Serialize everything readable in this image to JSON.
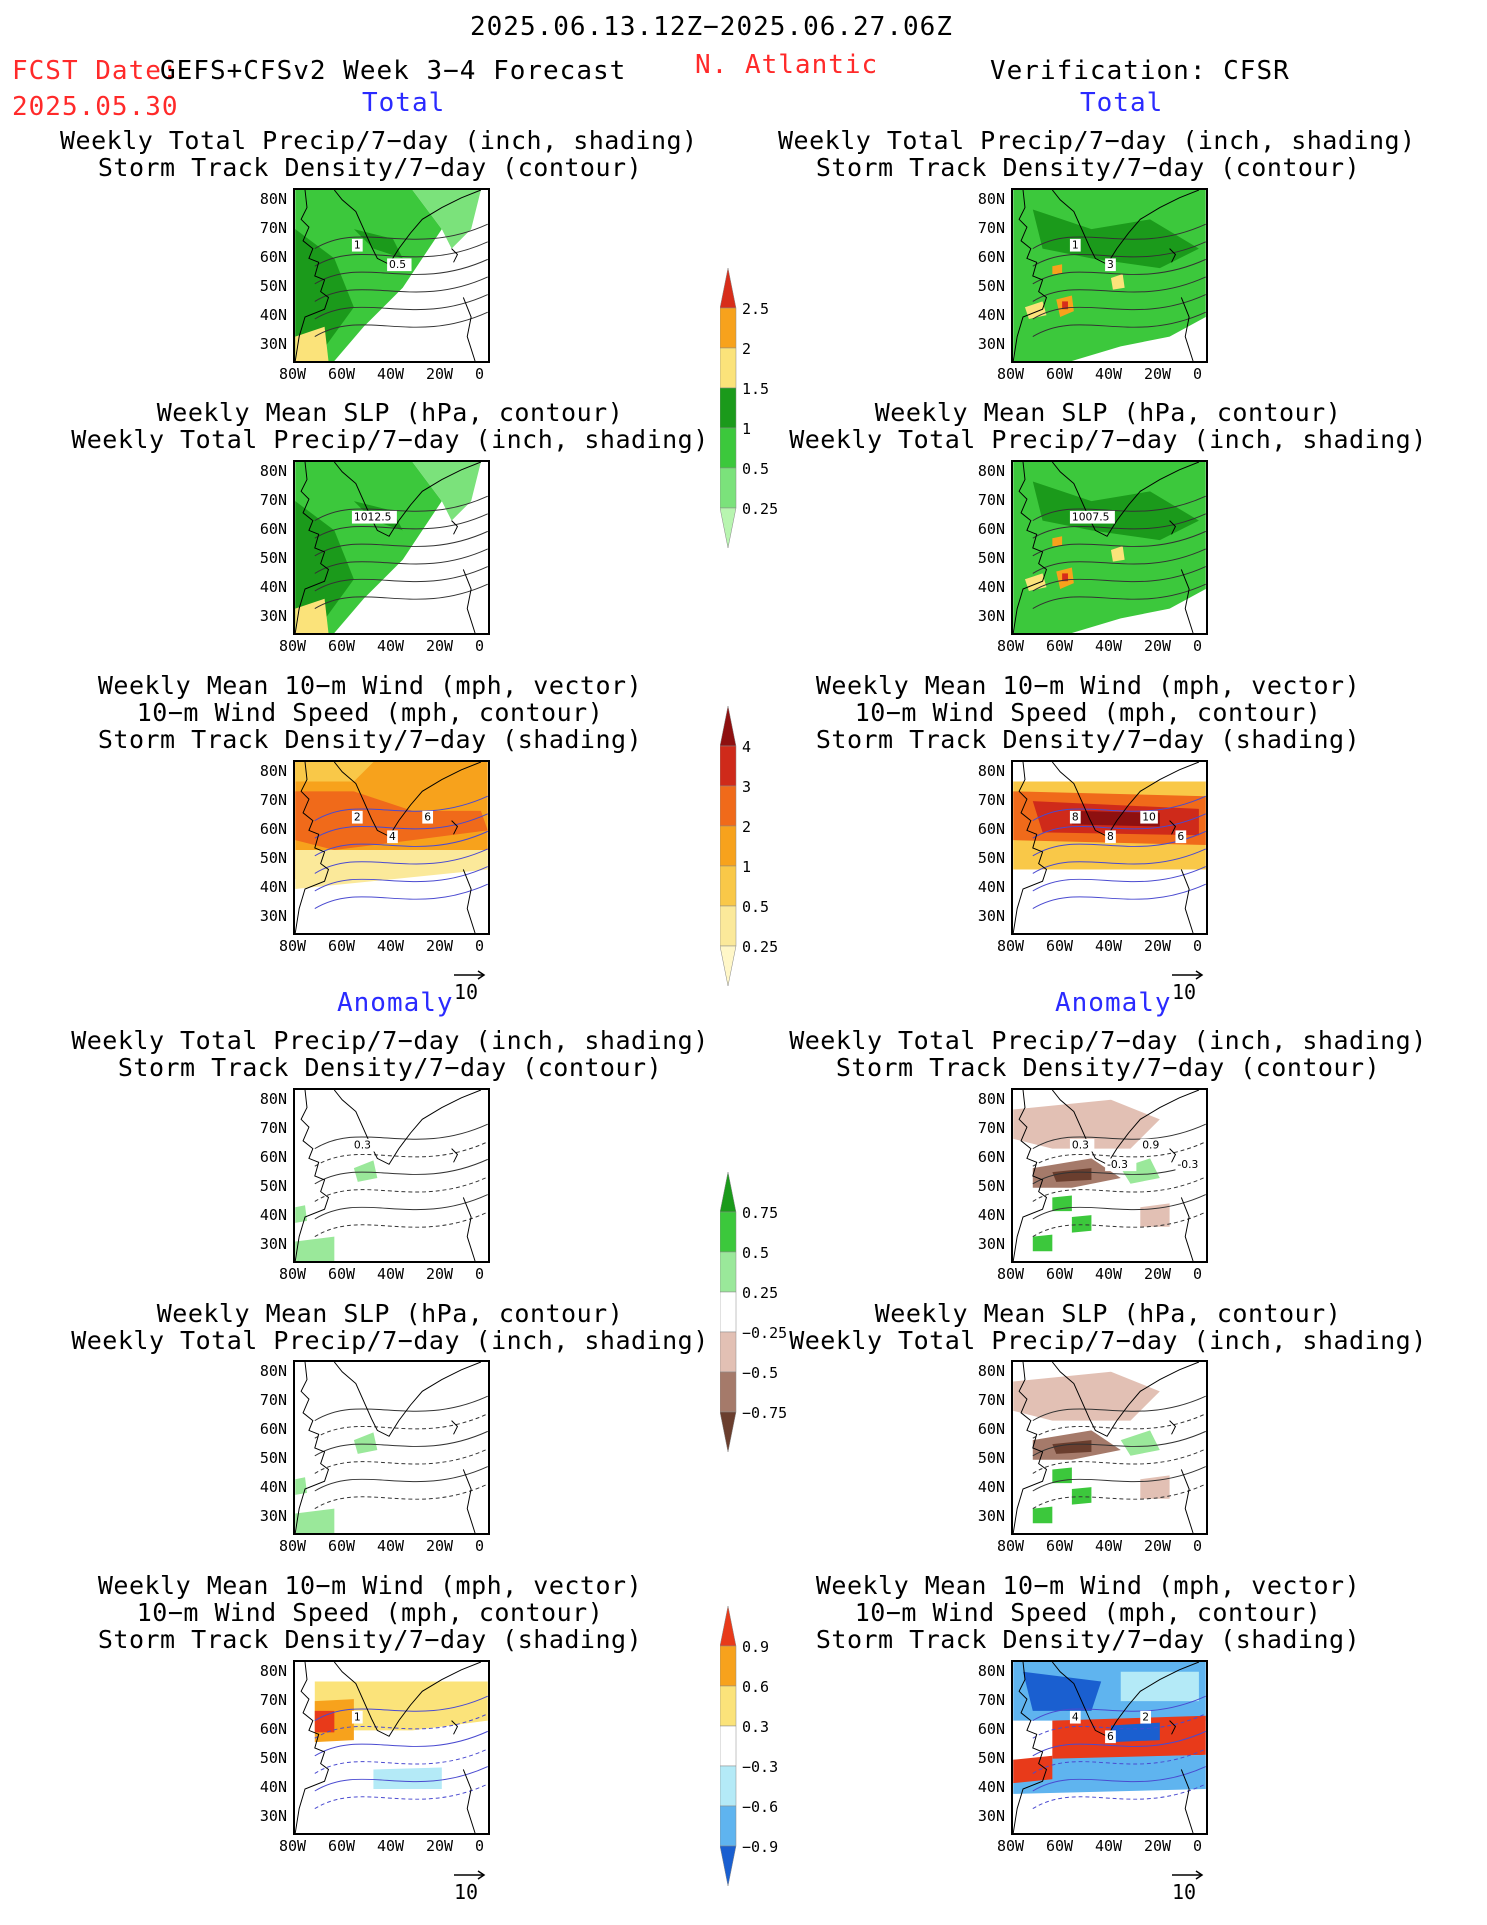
{
  "header": {
    "period": "2025.06.13.12Z−2025.06.27.06Z",
    "fcst_label": "FCST Date:",
    "fcst_date": "2025.05.30",
    "model": "GEFS+CFSv2 Week 3−4 Forecast",
    "region": "N. Atlantic",
    "verification": "Verification: CFSR"
  },
  "section_labels": {
    "total": "Total",
    "anomaly": "Anomaly"
  },
  "titles": {
    "precip_storm": [
      "Weekly Total Precip/7−day (inch, shading)",
      "Storm Track Density/7−day (contour)"
    ],
    "slp_precip": [
      "Weekly Mean SLP (hPa, contour)",
      "Weekly Total Precip/7−day (inch, shading)"
    ],
    "wind_storm": [
      "Weekly Mean 10−m Wind (mph, vector)",
      "10−m Wind Speed (mph, contour)",
      "Storm Track Density/7−day (shading)"
    ]
  },
  "axes": {
    "lat_ticks": [
      "80N",
      "70N",
      "60N",
      "50N",
      "40N",
      "30N"
    ],
    "lon_ticks": [
      "80W",
      "60W",
      "40W",
      "20W",
      "0"
    ]
  },
  "vector_ref": "10",
  "colorbars": {
    "precip_total": {
      "labels": [
        "2.5",
        "2",
        "1.5",
        "1",
        "0.5",
        "0.25"
      ],
      "colors": [
        "#d72d1a",
        "#f7a21c",
        "#fbe37a",
        "#1b9a1b",
        "#3cc83c",
        "#7be27b",
        "#b8f5b0"
      ]
    },
    "storm_total": {
      "labels": [
        "4",
        "3",
        "2",
        "1",
        "0.5",
        "0.25"
      ],
      "colors": [
        "#8e1010",
        "#cf2a1a",
        "#f06a1a",
        "#f7a21c",
        "#f9c848",
        "#fbe99a",
        "#fff7c8"
      ]
    },
    "precip_anom": {
      "labels": [
        "0.75",
        "0.5",
        "0.25",
        "−0.25",
        "−0.5",
        "−0.75"
      ],
      "colors": [
        "#1b9a1b",
        "#3cc83c",
        "#9ae89a",
        "#ffffff",
        "#e2c0b4",
        "#a57a6a",
        "#6a3e2e"
      ]
    },
    "storm_anom": {
      "labels": [
        "0.9",
        "0.6",
        "0.3",
        "−0.3",
        "−0.6",
        "−0.9"
      ],
      "colors": [
        "#e83a1a",
        "#f7a21c",
        "#fbe37a",
        "#ffffff",
        "#b4eaf7",
        "#5fb4ef",
        "#1a5fd0"
      ]
    }
  },
  "contour_labels": {
    "p1_storm": [
      "1",
      "0.5"
    ],
    "p2_storm": [
      "1",
      "3"
    ],
    "p3_slp": "1012.5",
    "p4_slp": "1007.5",
    "p5_wind": [
      "2",
      "4",
      "6"
    ],
    "p6_wind": [
      "8",
      "8",
      "10",
      "6"
    ],
    "p7_storm": [
      "0.3"
    ],
    "p8_storm": [
      "0.3",
      "-0.3",
      "0.9",
      "-0.3"
    ],
    "p11_wind": [
      "1"
    ],
    "p12_wind": [
      "4",
      "6",
      "2"
    ]
  }
}
